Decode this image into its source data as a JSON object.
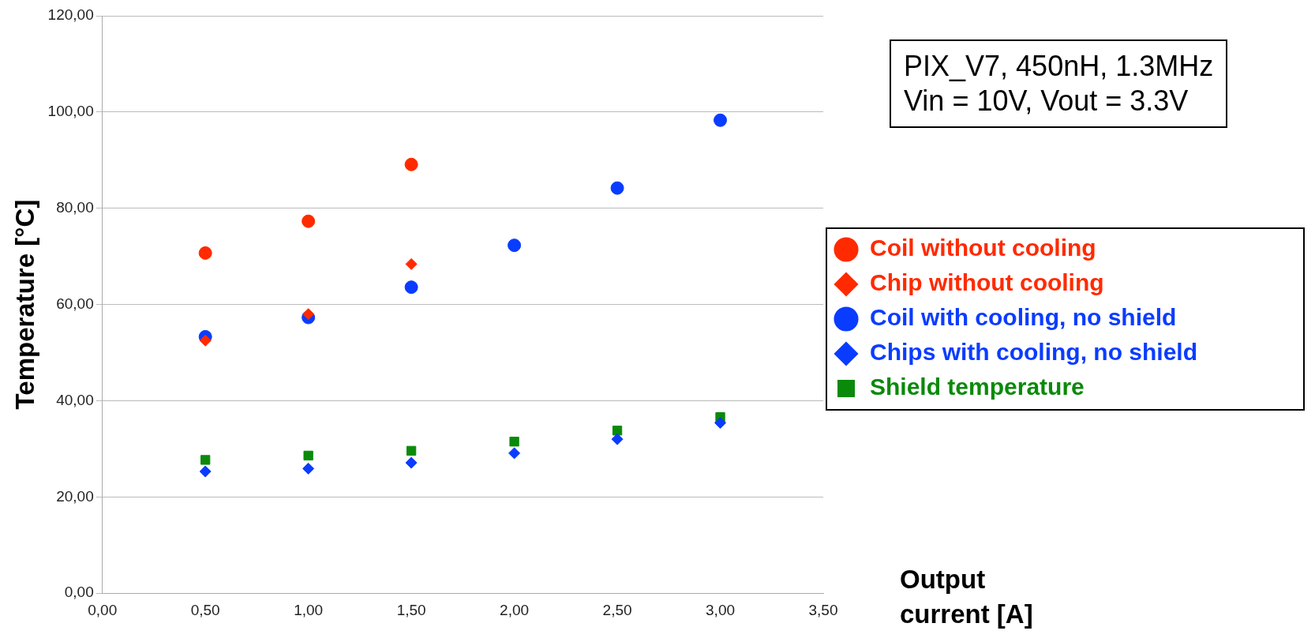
{
  "chart_data": {
    "type": "scatter",
    "xlabel": "Output current [A]",
    "ylabel": "Temperature [°C]",
    "annotations": [
      "PIX_V7, 450nH, 1.3MHz",
      "Vin = 10V, Vout = 3.3V"
    ],
    "xlim": [
      0,
      3.5
    ],
    "xticks": [
      {
        "value": 0,
        "label": "0,00"
      },
      {
        "value": 0.5,
        "label": "0,50"
      },
      {
        "value": 1,
        "label": "1,00"
      },
      {
        "value": 1.5,
        "label": "1,50"
      },
      {
        "value": 2,
        "label": "2,00"
      },
      {
        "value": 2.5,
        "label": "2,50"
      },
      {
        "value": 3,
        "label": "3,00"
      },
      {
        "value": 3.5,
        "label": "3,50"
      }
    ],
    "ylim": [
      0,
      120
    ],
    "yticks": [
      {
        "value": 0,
        "label": "0,00"
      },
      {
        "value": 20,
        "label": "20,00"
      },
      {
        "value": 40,
        "label": "40,00"
      },
      {
        "value": 60,
        "label": "60,00"
      },
      {
        "value": 80,
        "label": "80,00"
      },
      {
        "value": 100,
        "label": "100,00"
      },
      {
        "value": 120,
        "label": "120,00"
      }
    ],
    "grid": "y",
    "legend": "right",
    "series": [
      {
        "name": "Coil without cooling",
        "color": "#ff2a00",
        "marker": "circle",
        "x": [
          0.5,
          1,
          1.5
        ],
        "values": [
          70.7,
          77.3,
          89.1
        ]
      },
      {
        "name": "Chip without cooling",
        "color": "#ff2a00",
        "marker": "diamond",
        "x": [
          0.5,
          1,
          1.5
        ],
        "values": [
          52.5,
          58.0,
          68.4
        ]
      },
      {
        "name": "Coil with cooling, no shield",
        "color": "#0a3cff",
        "marker": "circle",
        "x": [
          0.5,
          1,
          1.5,
          2,
          2.5,
          3
        ],
        "values": [
          53.3,
          57.3,
          63.6,
          72.3,
          84.2,
          98.3
        ]
      },
      {
        "name": "Chips with cooling, no shield",
        "color": "#0a3cff",
        "marker": "diamond",
        "x": [
          0.5,
          1,
          1.5,
          2,
          2.5,
          3
        ],
        "values": [
          25.3,
          25.9,
          27.1,
          29.1,
          32.0,
          35.4
        ]
      },
      {
        "name": "Shield temperature",
        "color": "#0a8a0a",
        "marker": "square",
        "x": [
          0.5,
          1,
          1.5,
          2,
          2.5,
          3
        ],
        "values": [
          27.7,
          28.6,
          29.6,
          31.5,
          33.8,
          36.6
        ]
      }
    ]
  }
}
